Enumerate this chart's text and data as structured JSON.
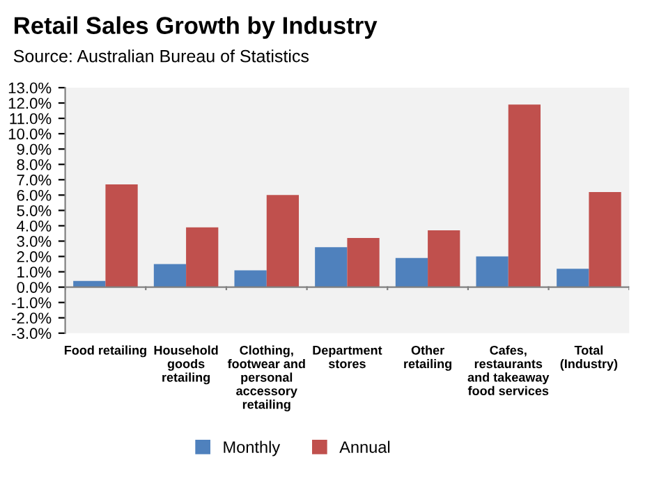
{
  "chart_data": {
    "type": "bar",
    "title": "Retail Sales Growth by Industry",
    "subtitle": "Source: Australian Bureau of Statistics",
    "categories": [
      "Food retailing",
      "Household\ngoods\nretailing",
      "Clothing,\nfootwear and\npersonal\naccessory\nretailing",
      "Department\nstores",
      "Other\nretailing",
      "Cafes,\nrestaurants\nand takeaway\nfood services",
      "Total\n(Industry)"
    ],
    "series": [
      {
        "name": "Monthly",
        "color": "#4f81bd",
        "values": [
          0.4,
          1.5,
          1.1,
          2.6,
          1.9,
          2.0,
          1.2
        ]
      },
      {
        "name": "Annual",
        "color": "#c0504d",
        "values": [
          6.7,
          3.9,
          6.0,
          3.2,
          3.7,
          11.9,
          6.2
        ]
      }
    ],
    "ylim": [
      -3,
      13
    ],
    "yticks": [
      {
        "value": -3,
        "label": "-3.0%"
      },
      {
        "value": -2,
        "label": "-2.0%"
      },
      {
        "value": -1,
        "label": "-1.0%"
      },
      {
        "value": 0,
        "label": "0.0%"
      },
      {
        "value": 1,
        "label": "1.0%"
      },
      {
        "value": 2,
        "label": "2.0%"
      },
      {
        "value": 3,
        "label": "3.0%"
      },
      {
        "value": 4,
        "label": "4.0%"
      },
      {
        "value": 5,
        "label": "5.0%"
      },
      {
        "value": 6,
        "label": "6.0%"
      },
      {
        "value": 7,
        "label": "7.0%"
      },
      {
        "value": 8,
        "label": "8.0%"
      },
      {
        "value": 9,
        "label": "9.0%"
      },
      {
        "value": 10,
        "label": "10.0%"
      },
      {
        "value": 11,
        "label": "11.0%"
      },
      {
        "value": 12,
        "label": "12.0%"
      },
      {
        "value": 13,
        "label": "13.0%"
      }
    ],
    "legend": "bottom"
  }
}
